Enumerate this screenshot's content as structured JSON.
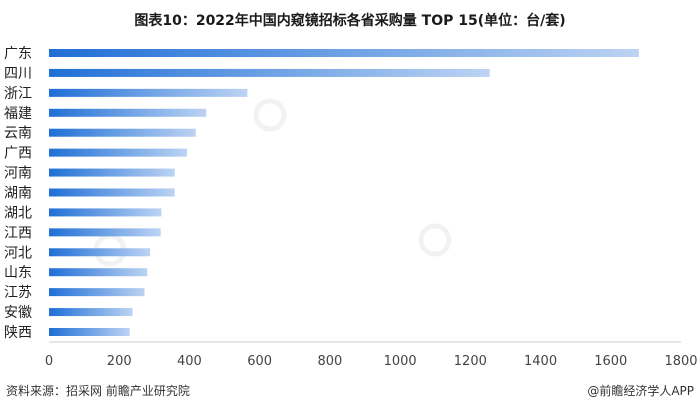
{
  "chart_data": {
    "type": "bar",
    "orientation": "horizontal",
    "title": "图表10：2022年中国内窥镜招标各省采购量 TOP 15(单位：台/套)",
    "categories": [
      "广东",
      "四川",
      "浙江",
      "福建",
      "云南",
      "广西",
      "河南",
      "湖南",
      "湖北",
      "江西",
      "河北",
      "山东",
      "江苏",
      "安徽",
      "陕西"
    ],
    "values": [
      1680,
      1255,
      565,
      448,
      418,
      393,
      358,
      358,
      320,
      318,
      288,
      280,
      272,
      238,
      230
    ],
    "xlim": [
      0,
      1800
    ],
    "xticks": [
      "0",
      "200",
      "400",
      "600",
      "800",
      "1000",
      "1200",
      "1400",
      "1600",
      "1800"
    ],
    "bar_color_start": "#1f6fd6",
    "bar_color_end": "#bcd3f3",
    "grid": false,
    "legend": "none"
  },
  "footer": {
    "source": "资料来源：招采网 前瞻产业研究院",
    "brand": "@前瞻经济学人APP"
  }
}
